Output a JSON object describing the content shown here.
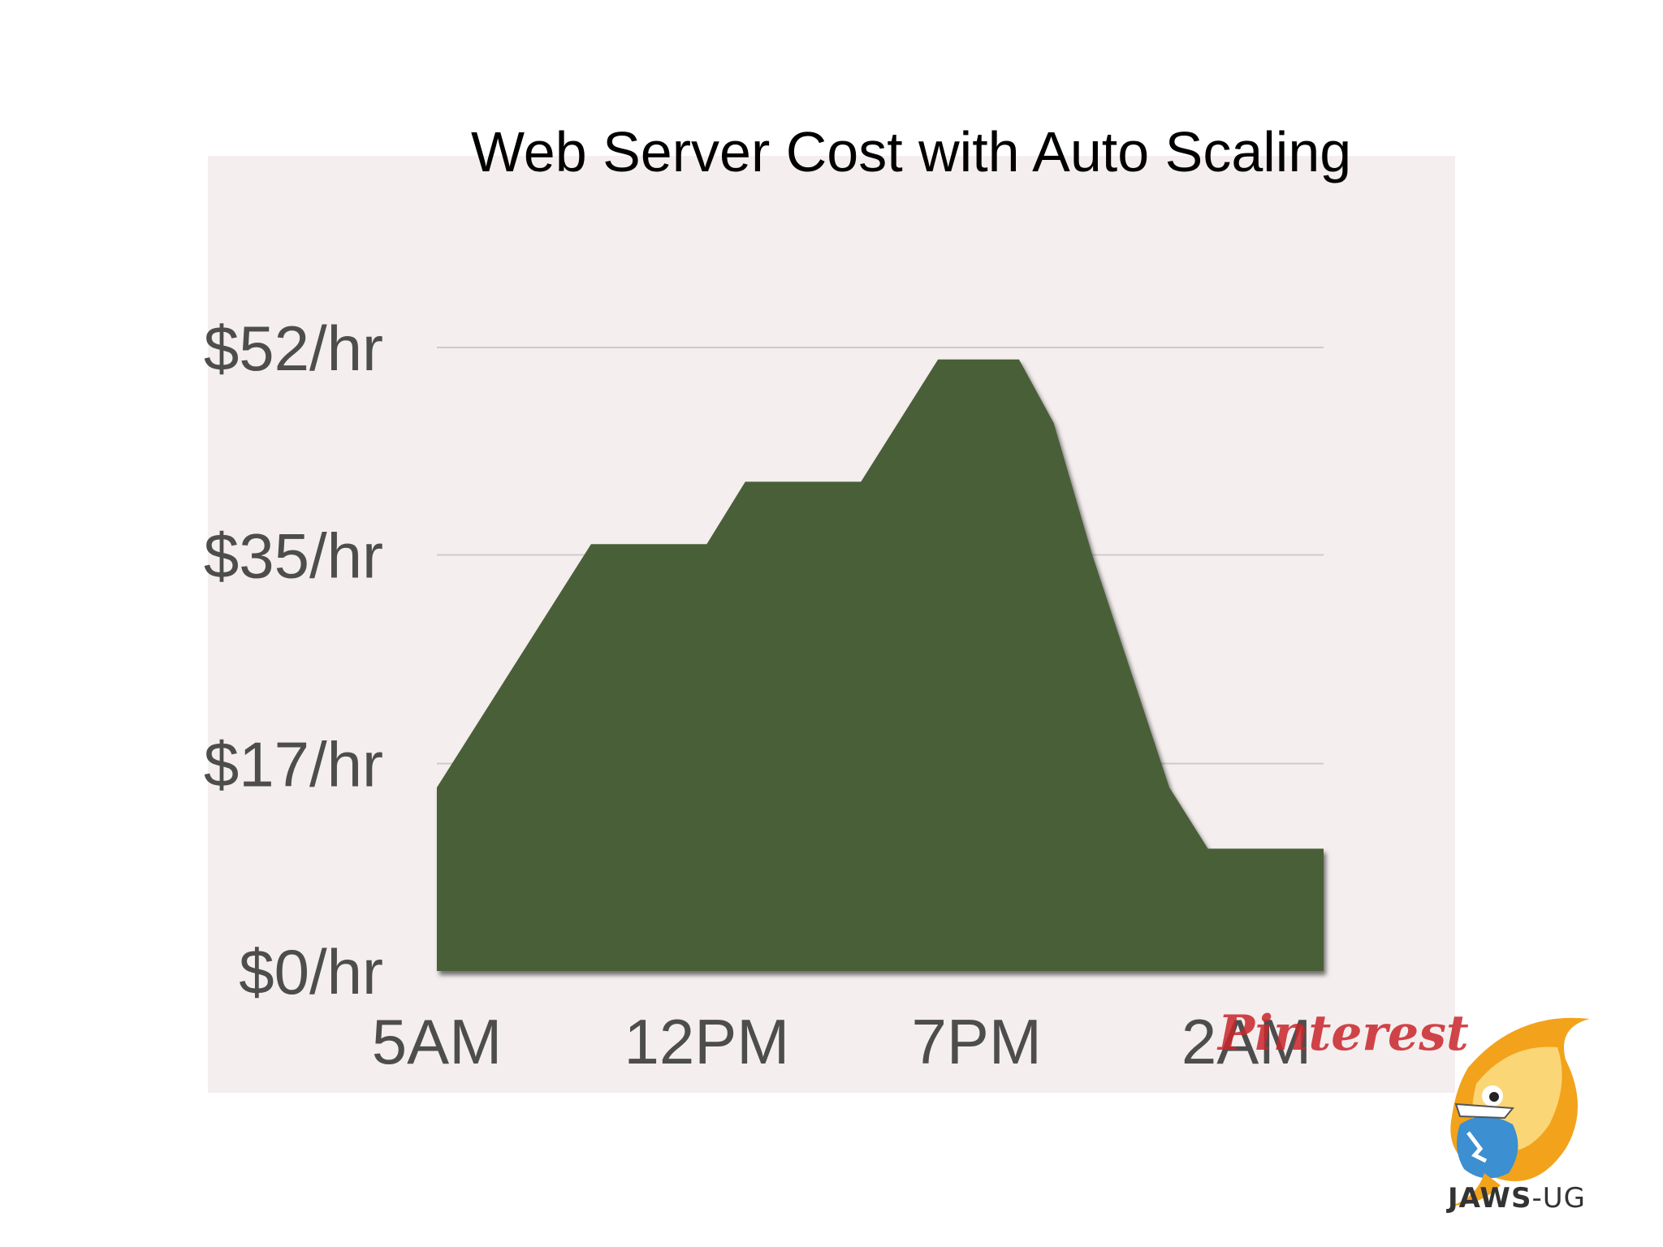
{
  "slide": {
    "title": "Web Server Cost with Auto Scaling",
    "watermark": "Pinterest",
    "logo_text_main": "JAWS",
    "logo_text_suffix": "-UG"
  },
  "colors": {
    "panel_bg": "#f5eeee",
    "area_fill": "#4a5e38",
    "grid": "#cccccc",
    "tick_text": "#4d4d4d"
  },
  "chart_data": {
    "type": "area",
    "title": "Web Server Cost with Auto Scaling",
    "xlabel": "",
    "ylabel": "",
    "x_tick_labels": [
      "5AM",
      "12PM",
      "7PM",
      "2AM"
    ],
    "x_ticks_hours": [
      0,
      7,
      14,
      21
    ],
    "xlim": [
      0,
      23
    ],
    "y_tick_labels": [
      "$0/hr",
      "$17/hr",
      "$35/hr",
      "$52/hr"
    ],
    "y_ticks": [
      0,
      17.3,
      34.7,
      52
    ],
    "ylim": [
      0,
      52
    ],
    "grid": true,
    "series": [
      {
        "x": [
          0,
          4,
          7,
          8,
          11,
          13,
          15.1,
          16,
          17,
          19,
          20,
          23
        ],
        "y": [
          15.3,
          35.6,
          35.6,
          40.8,
          40.8,
          51,
          51,
          45.7,
          34.7,
          15.3,
          10.2,
          10.2
        ]
      }
    ]
  }
}
